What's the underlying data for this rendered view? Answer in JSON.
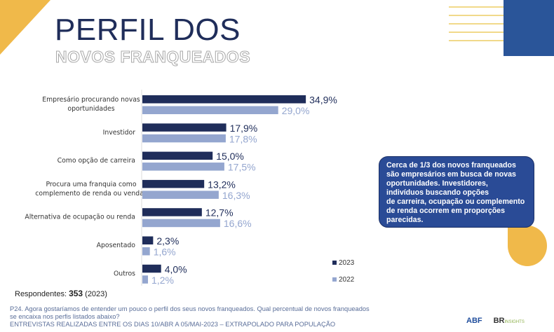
{
  "header": {
    "title": "PERFIL DOS",
    "subtitle": "NOVOS FRANQUEADOS"
  },
  "colors": {
    "series_2023": "#1f2d5a",
    "series_2022": "#94a6cf",
    "accent_yellow": "#f0b94a",
    "accent_blue": "#2a5599"
  },
  "chart_data": {
    "type": "bar",
    "orientation": "horizontal",
    "categories": [
      "Empresário procurando novas oportunidades",
      "Investidor",
      "Como opção de carreira",
      "Procura uma franquia como complemento de renda ou vendas",
      "Alternativa de ocupação ou renda",
      "Aposentado",
      "Outros"
    ],
    "category_lines": [
      [
        "Empresário procurando novas",
        "oportunidades"
      ],
      [
        "Investidor"
      ],
      [
        "Como opção de carreira"
      ],
      [
        "Procura uma franquia como",
        "complemento de renda ou vendas"
      ],
      [
        "Alternativa de ocupação ou renda"
      ],
      [
        "Aposentado"
      ],
      [
        "Outros"
      ]
    ],
    "series": [
      {
        "name": "2023",
        "values": [
          34.9,
          17.9,
          15.0,
          13.2,
          12.7,
          2.3,
          4.0
        ],
        "labels": [
          "34,9%",
          "17,9%",
          "15,0%",
          "13,2%",
          "12,7%",
          "2,3%",
          "4,0%"
        ]
      },
      {
        "name": "2022",
        "values": [
          29.0,
          17.8,
          17.5,
          16.3,
          16.6,
          1.6,
          1.2
        ],
        "labels": [
          "29,0%",
          "17,8%",
          "17,5%",
          "16,3%",
          "16,6%",
          "1,6%",
          "1,2%"
        ]
      }
    ],
    "unit": "%",
    "legend": "bottom-right",
    "grid": false
  },
  "respondents": {
    "label": "Respondentes:",
    "count": "353",
    "year": "(2023)"
  },
  "callout": {
    "text": "Cerca de 1/3 dos novos franqueados são empresários em busca de novas oportunidades. Investidores, indivíduos buscando opções\nde carreira, ocupação ou complemento de renda ocorrem em proporções parecidas."
  },
  "footer": {
    "question": "P24. Agora gostaríamos de entender um pouco o perfil dos seus novos franqueados. Qual percentual de novos franqueados se encaixa nos perfis listados abaixo?",
    "note": "ENTREVISTAS REALIZADAS ENTRE OS DIAS 10/ABR A 05/MAI-2023 – EXTRAPOLADO PARA POPULAÇÃO"
  },
  "logos": {
    "abf": "ABF",
    "br": "BR",
    "br_suffix": "INSIGHTS"
  }
}
